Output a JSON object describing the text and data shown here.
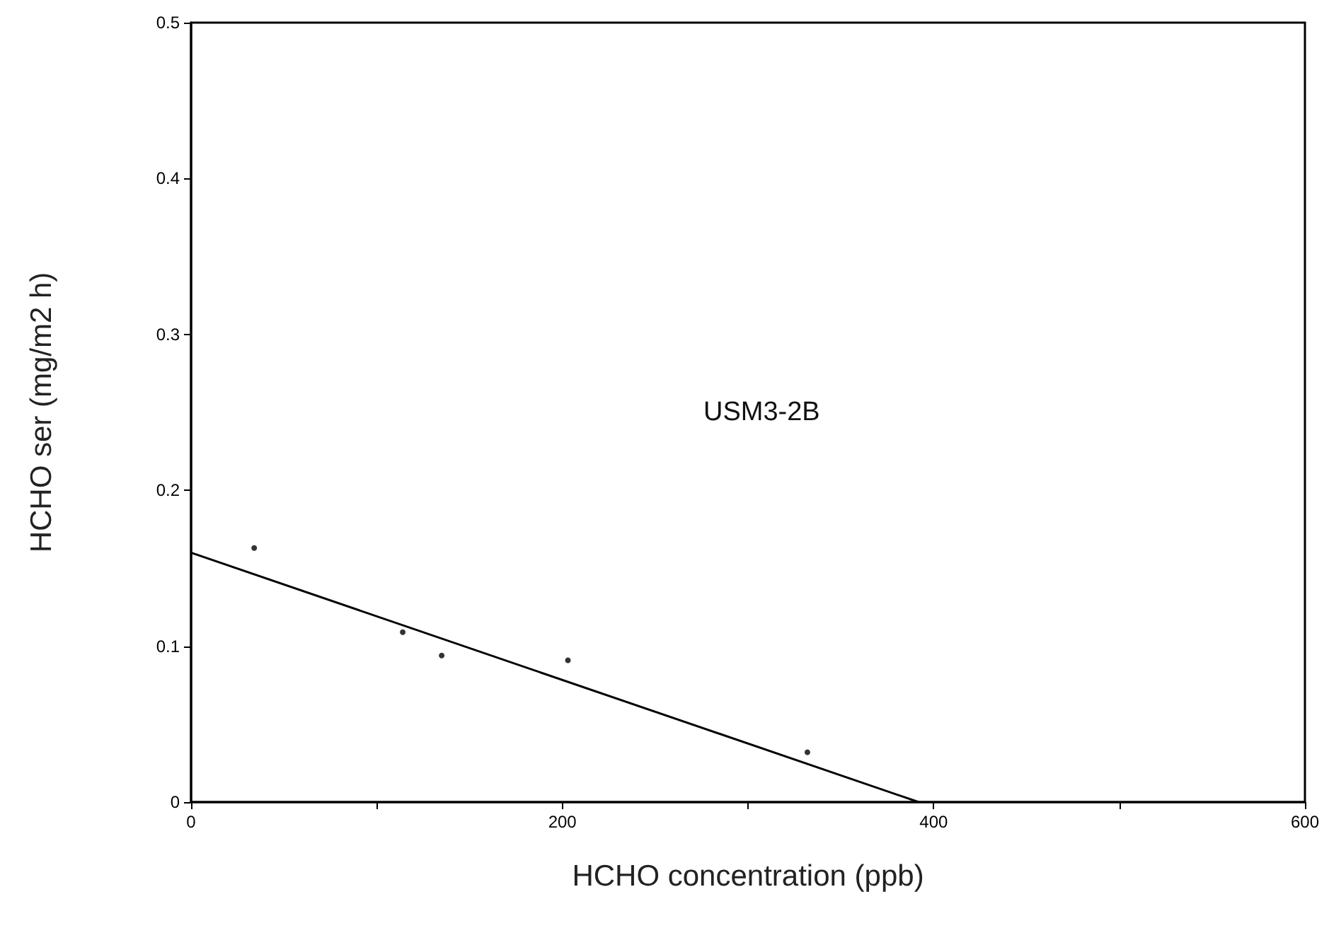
{
  "chart_data": {
    "type": "scatter",
    "xlabel": "HCHO concentration (ppb)",
    "ylabel": "HCHO ser (mg/m2 h)",
    "annotations": [
      "USM3-2B"
    ],
    "series": [
      {
        "color": "#000000",
        "x": [
          34,
          114,
          135,
          203,
          332
        ],
        "values": [
          0.163,
          0.109,
          0.094,
          0.091,
          0.032
        ]
      },
      {
        "type": "line",
        "color": "#000000",
        "x": [
          0,
          392
        ],
        "values": [
          0.16,
          0
        ]
      }
    ],
    "xlim": [
      0,
      600
    ],
    "xticks": [
      0,
      {
        "value": 100,
        "label": null
      },
      200,
      {
        "value": 300,
        "label": null
      },
      400,
      {
        "value": 500,
        "label": null
      },
      600
    ],
    "ylim": [
      0,
      0.5
    ],
    "yticks": [
      0,
      0.1,
      0.2,
      0.3,
      0.4,
      0.5
    ],
    "grid": false
  }
}
